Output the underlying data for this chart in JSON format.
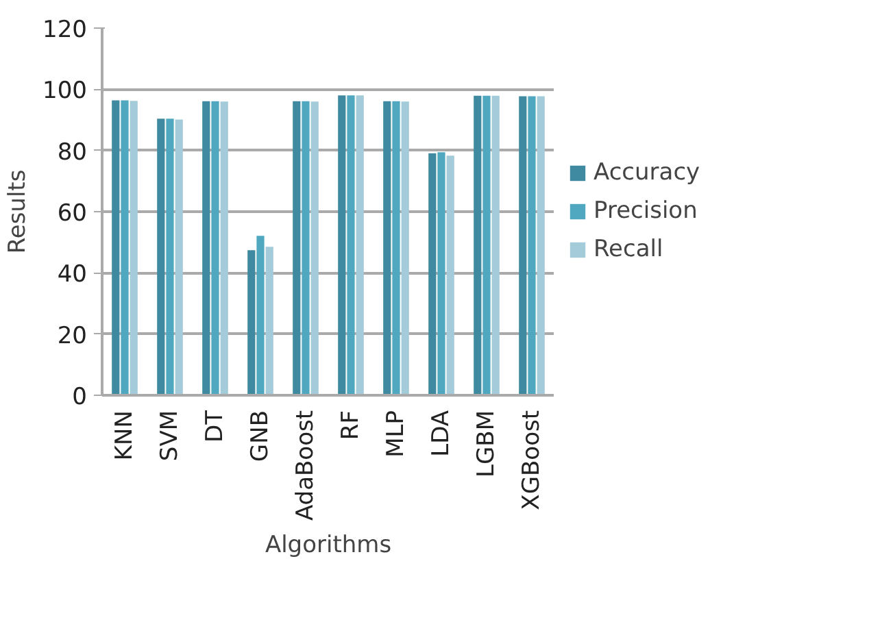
{
  "chart_data": {
    "type": "bar",
    "xlabel": "Algorithms",
    "ylabel": "Results",
    "categories": [
      "KNN",
      "SVM",
      "DT",
      "GNB",
      "AdaBoost",
      "RF",
      "MLP",
      "LDA",
      "LGBM",
      "XGBoost"
    ],
    "series": [
      {
        "name": "Accuracy",
        "color": "#3f8aa0",
        "values": [
          96.4,
          90.4,
          96.1,
          47.4,
          96.1,
          98.0,
          96.1,
          79.1,
          97.9,
          97.7
        ]
      },
      {
        "name": "Precision",
        "color": "#4fa8c0",
        "values": [
          96.4,
          90.4,
          96.1,
          52.1,
          96.1,
          98.0,
          96.1,
          79.4,
          97.9,
          97.7
        ]
      },
      {
        "name": "Recall",
        "color": "#a3cbd9",
        "values": [
          96.2,
          90.1,
          96.0,
          48.5,
          96.0,
          98.0,
          96.0,
          78.3,
          97.9,
          97.7
        ]
      }
    ],
    "ylim": [
      0,
      120
    ],
    "yticks": [
      0,
      20,
      40,
      60,
      80,
      100,
      120
    ],
    "grid": "y",
    "legend": "right"
  }
}
